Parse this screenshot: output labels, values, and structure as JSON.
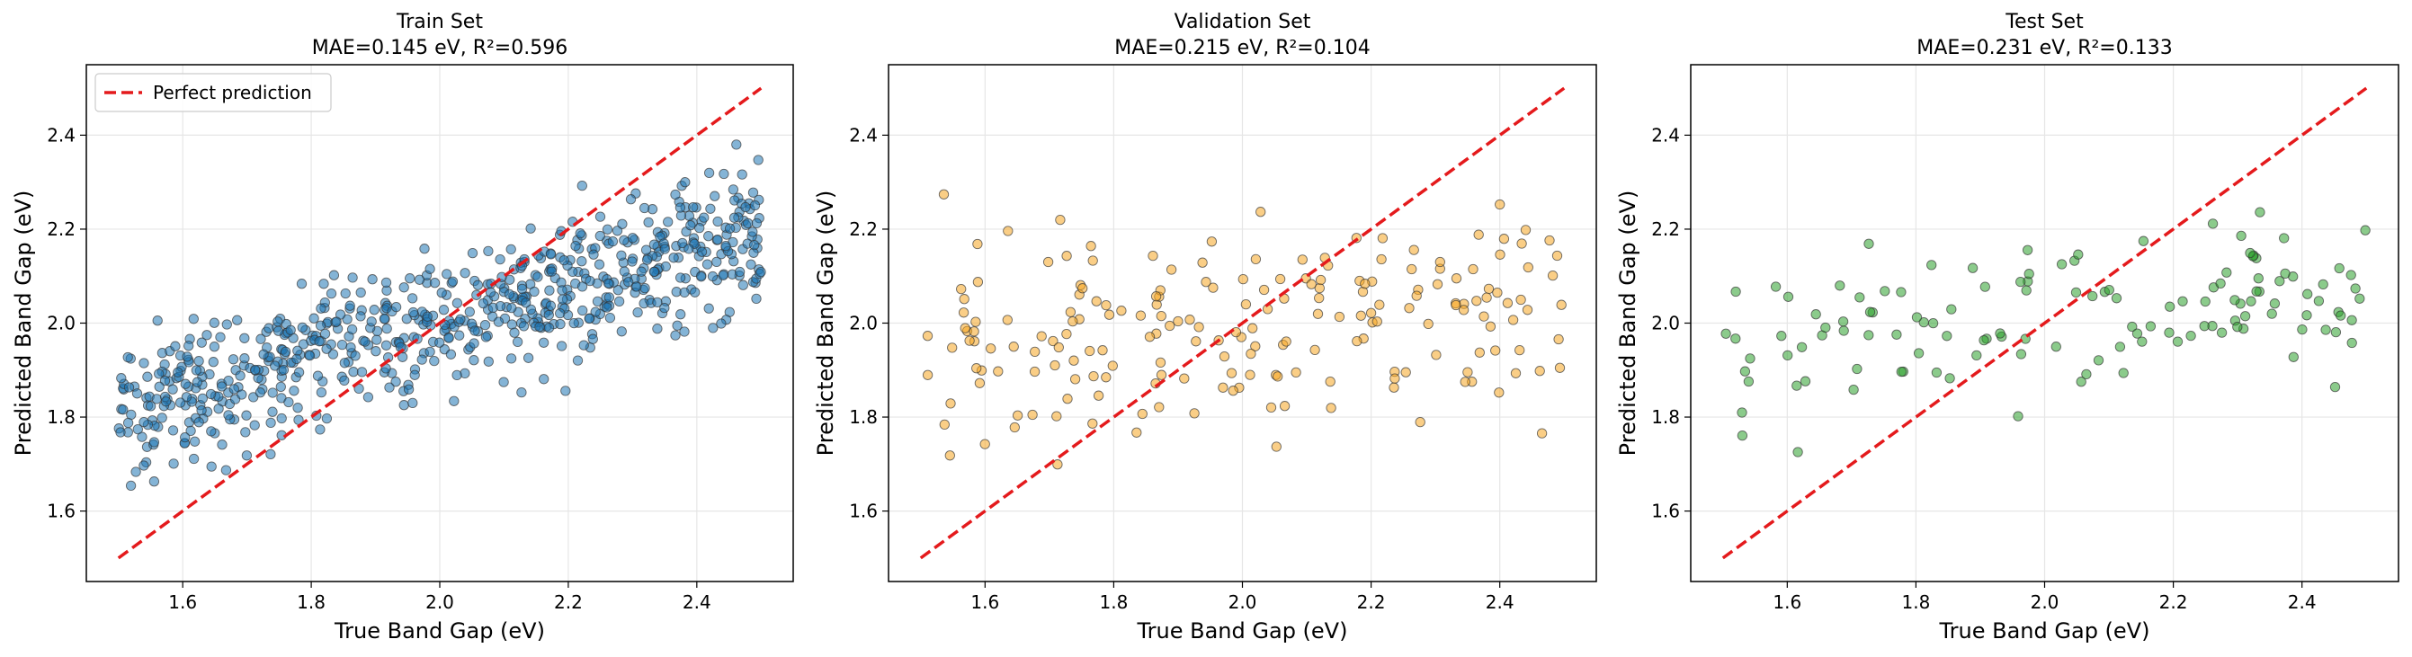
{
  "chart_data": [
    {
      "type": "scatter",
      "title": "Train Set",
      "subtitle": "MAE=0.145 eV, R²=0.596",
      "xlabel": "True Band Gap (eV)",
      "ylabel": "Predicted Band Gap (eV)",
      "xlim": [
        1.45,
        2.55
      ],
      "ylim": [
        1.45,
        2.55
      ],
      "xticks": [
        "1.6",
        "1.8",
        "2.0",
        "2.2",
        "2.4"
      ],
      "yticks": [
        "1.6",
        "1.8",
        "2.0",
        "2.2",
        "2.4"
      ],
      "grid": true,
      "point_color": "#1f77b4",
      "n_points": 700,
      "trend": {
        "intercept": 1.25,
        "slope": 0.375,
        "noise": 0.075
      },
      "legend": {
        "position": "top-left",
        "entries": [
          "Perfect prediction"
        ]
      },
      "reference_line": {
        "name": "Perfect prediction",
        "x": [
          1.5,
          2.5
        ],
        "y": [
          1.5,
          2.5
        ],
        "color": "#e41a1c"
      }
    },
    {
      "type": "scatter",
      "title": "Validation Set",
      "subtitle": "MAE=0.215 eV, R²=0.104",
      "xlabel": "True Band Gap (eV)",
      "ylabel": "Predicted Band Gap (eV)",
      "xlim": [
        1.45,
        2.55
      ],
      "ylim": [
        1.45,
        2.55
      ],
      "xticks": [
        "1.6",
        "1.8",
        "2.0",
        "2.2",
        "2.4"
      ],
      "yticks": [
        "1.6",
        "1.8",
        "2.0",
        "2.2",
        "2.4"
      ],
      "grid": true,
      "point_color": "#f5a623",
      "n_points": 200,
      "trend": {
        "intercept": 1.84,
        "slope": 0.08,
        "noise": 0.11
      },
      "reference_line": {
        "name": "Perfect prediction",
        "x": [
          1.5,
          2.5
        ],
        "y": [
          1.5,
          2.5
        ],
        "color": "#e41a1c"
      }
    },
    {
      "type": "scatter",
      "title": "Test Set",
      "subtitle": "MAE=0.231 eV, R²=0.133",
      "xlabel": "True Band Gap (eV)",
      "ylabel": "Predicted Band Gap (eV)",
      "xlim": [
        1.45,
        2.55
      ],
      "ylim": [
        1.45,
        2.55
      ],
      "xticks": [
        "1.6",
        "1.8",
        "2.0",
        "2.2",
        "2.4"
      ],
      "yticks": [
        "1.6",
        "1.8",
        "2.0",
        "2.2",
        "2.4"
      ],
      "grid": true,
      "point_color": "#2ca02c",
      "n_points": 130,
      "trend": {
        "intercept": 1.78,
        "slope": 0.11,
        "noise": 0.1
      },
      "reference_line": {
        "name": "Perfect prediction",
        "x": [
          1.5,
          2.5
        ],
        "y": [
          1.5,
          2.5
        ],
        "color": "#e41a1c"
      }
    }
  ]
}
